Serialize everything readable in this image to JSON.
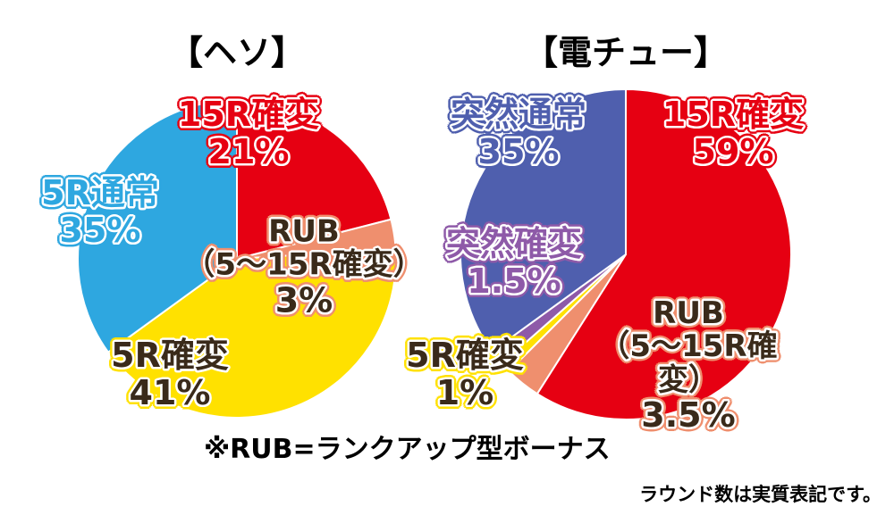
{
  "chart_data": [
    {
      "type": "pie",
      "title": "【ヘソ】",
      "categories": [
        "15R確変",
        "RUB\n（5～15R確変）",
        "5R確変",
        "5R通常"
      ],
      "values": [
        21,
        3,
        41,
        35
      ],
      "value_labels": [
        "21%",
        "3%",
        "41%",
        "35%"
      ],
      "colors": [
        "#e60012",
        "#ef8f6e",
        "#ffe100",
        "#2ea7e0"
      ]
    },
    {
      "type": "pie",
      "title": "【電チュー】",
      "categories": [
        "15R確変",
        "RUB\n（5～15R確変）",
        "5R確変",
        "突然確変",
        "突然通常"
      ],
      "values": [
        59,
        3.5,
        1,
        1.5,
        35
      ],
      "value_labels": [
        "59%",
        "3.5%",
        "1%",
        "1.5%",
        "35%"
      ],
      "colors": [
        "#e60012",
        "#ef8f6e",
        "#ffe100",
        "#8e5aa8",
        "#4f5fae"
      ]
    }
  ],
  "footnote": "※RUB=ランクアップ型ボーナス",
  "note": "ラウンド数は実質表記です。"
}
